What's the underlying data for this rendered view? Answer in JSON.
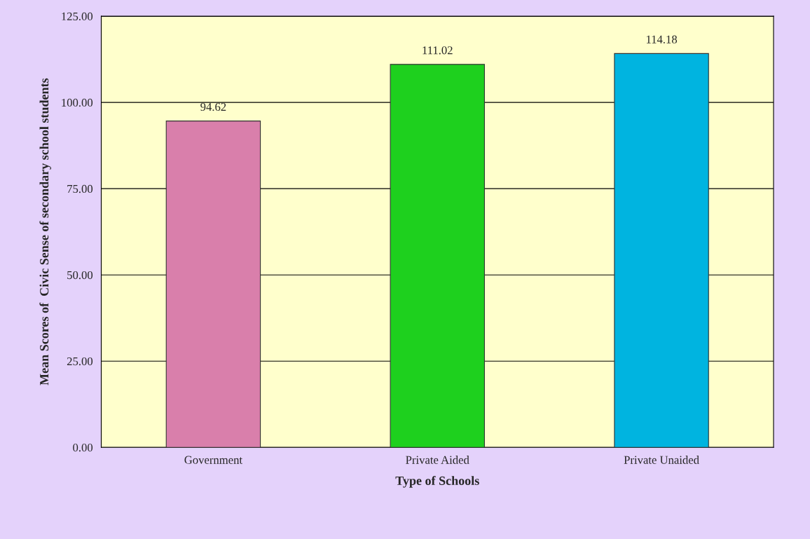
{
  "chart_data": {
    "type": "bar",
    "xlabel": "Type of Schools",
    "ylabel": "Mean Scores of  Civic Sense of secondary school students",
    "categories": [
      "Government",
      "Private Aided",
      "Private Unaided"
    ],
    "values": [
      94.62,
      111.02,
      114.18
    ],
    "colors": [
      "#d97fab",
      "#1ed01e",
      "#00b4e0"
    ],
    "data_labels": true,
    "ylim": [
      0,
      125
    ],
    "yticks": [
      {
        "value": 0,
        "label": "0.00"
      },
      {
        "value": 25,
        "label": "25.00"
      },
      {
        "value": 50,
        "label": "50.00"
      },
      {
        "value": 75,
        "label": "75.00"
      },
      {
        "value": 100,
        "label": "100.00"
      },
      {
        "value": 125,
        "label": "125.00"
      }
    ],
    "grid": "y",
    "legend": false
  }
}
